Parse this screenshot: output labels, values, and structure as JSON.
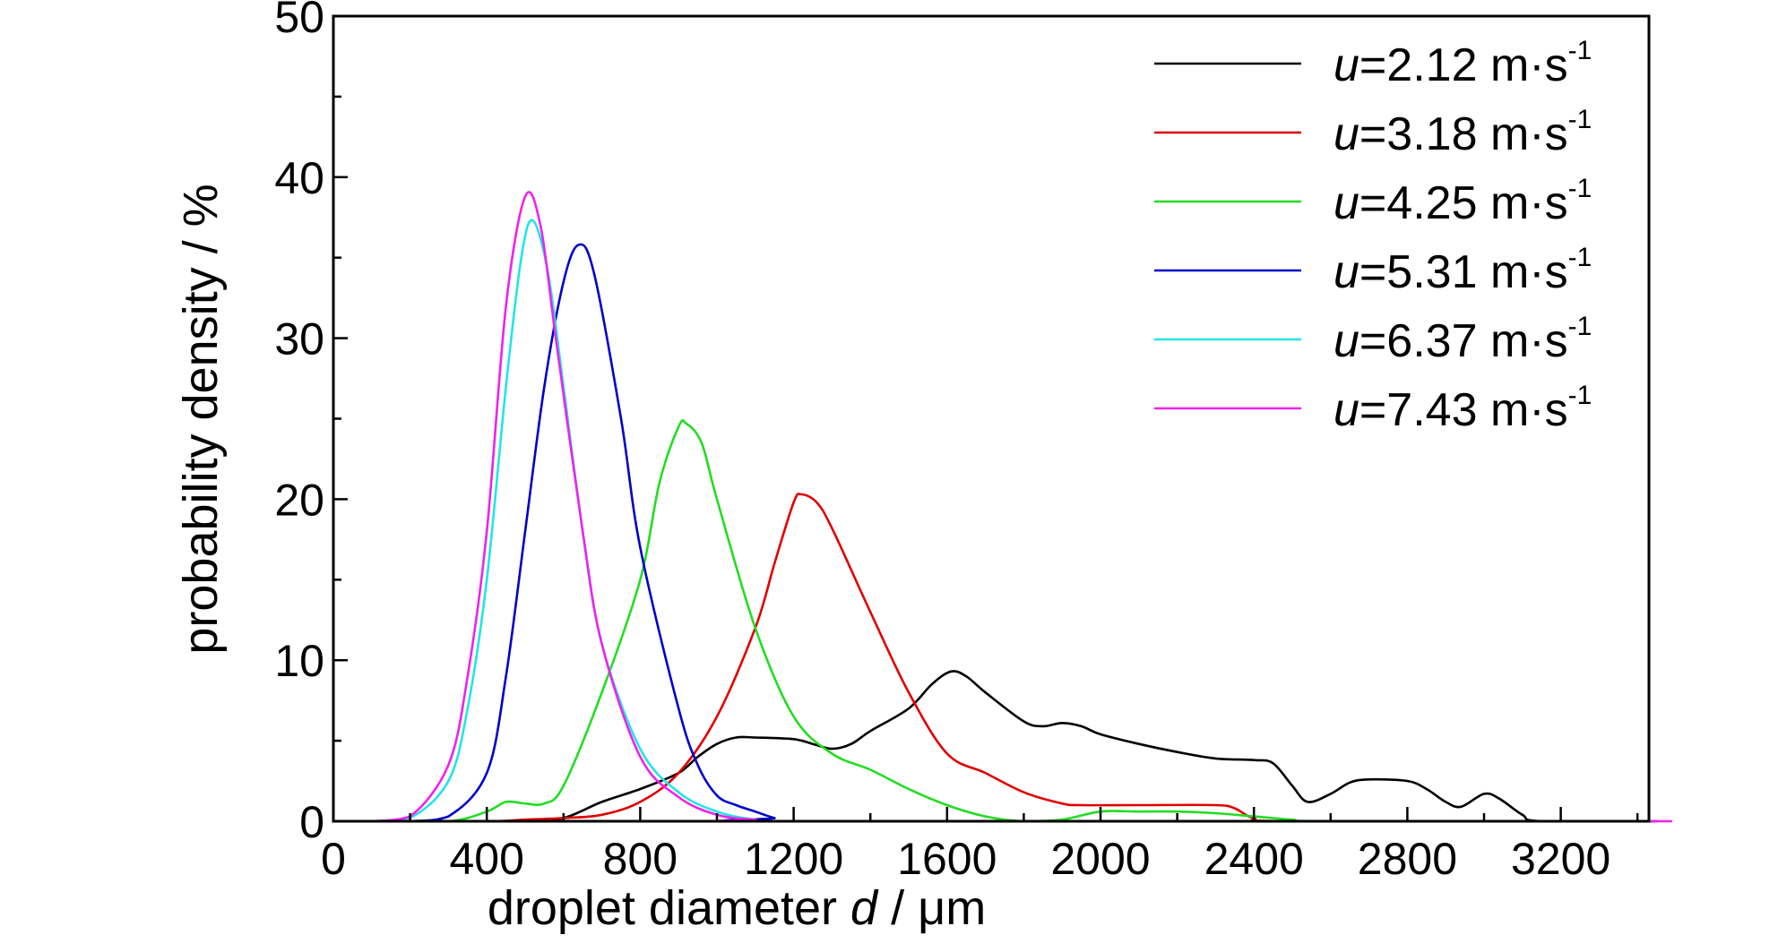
{
  "chart_data": {
    "type": "line",
    "xlabel": {
      "prefix": "droplet diameter ",
      "var": "d",
      "suffix": " / μm"
    },
    "ylabel": "probability density / %",
    "xlim": [
      0,
      3450
    ],
    "ylim": [
      0,
      50
    ],
    "xticks": [
      "0",
      "400",
      "800",
      "1200",
      "1600",
      "2000",
      "2400",
      "2800",
      "3200"
    ],
    "yticks": [
      "0",
      "10",
      "20",
      "30",
      "40",
      "50"
    ],
    "grid": false,
    "legend_position": "top-right",
    "series": [
      {
        "var": "u",
        "value": "=2.12 m·s",
        "exp": "-1",
        "color": "#000000",
        "points": [
          [
            100,
            0
          ],
          [
            400,
            0
          ],
          [
            500,
            0
          ],
          [
            600,
            0.2
          ],
          [
            700,
            1.2
          ],
          [
            800,
            2
          ],
          [
            900,
            3
          ],
          [
            950,
            4
          ],
          [
            1000,
            4.8
          ],
          [
            1050,
            5.2
          ],
          [
            1100,
            5.2
          ],
          [
            1200,
            5.1
          ],
          [
            1250,
            4.8
          ],
          [
            1300,
            4.5
          ],
          [
            1350,
            4.8
          ],
          [
            1400,
            5.6
          ],
          [
            1500,
            7
          ],
          [
            1560,
            8.5
          ],
          [
            1610,
            9.3
          ],
          [
            1650,
            9
          ],
          [
            1700,
            8
          ],
          [
            1800,
            6.2
          ],
          [
            1850,
            5.9
          ],
          [
            1900,
            6.1
          ],
          [
            1950,
            5.9
          ],
          [
            2000,
            5.4
          ],
          [
            2100,
            4.8
          ],
          [
            2200,
            4.3
          ],
          [
            2300,
            3.9
          ],
          [
            2400,
            3.8
          ],
          [
            2450,
            3.6
          ],
          [
            2500,
            2.2
          ],
          [
            2540,
            1.2
          ],
          [
            2600,
            1.7
          ],
          [
            2650,
            2.4
          ],
          [
            2700,
            2.6
          ],
          [
            2800,
            2.5
          ],
          [
            2850,
            2
          ],
          [
            2900,
            1.2
          ],
          [
            2940,
            0.9
          ],
          [
            3000,
            1.7
          ],
          [
            3040,
            1.4
          ],
          [
            3100,
            0.4
          ],
          [
            3150,
            0
          ],
          [
            3450,
            0
          ]
        ]
      },
      {
        "var": "u",
        "value": "=3.18 m·s",
        "exp": "-1",
        "color": "#e00000",
        "points": [
          [
            100,
            0
          ],
          [
            400,
            0
          ],
          [
            500,
            0.1
          ],
          [
            600,
            0.2
          ],
          [
            700,
            0.4
          ],
          [
            800,
            1.2
          ],
          [
            900,
            3
          ],
          [
            1000,
            6.5
          ],
          [
            1100,
            12
          ],
          [
            1150,
            16
          ],
          [
            1200,
            19.8
          ],
          [
            1220,
            20.3
          ],
          [
            1260,
            19.8
          ],
          [
            1300,
            18.2
          ],
          [
            1400,
            13
          ],
          [
            1500,
            8
          ],
          [
            1600,
            4.2
          ],
          [
            1700,
            3
          ],
          [
            1800,
            1.8
          ],
          [
            1900,
            1.1
          ],
          [
            1950,
            1
          ],
          [
            2100,
            1
          ],
          [
            2300,
            1
          ],
          [
            2350,
            0.8
          ],
          [
            2400,
            0.2
          ],
          [
            2500,
            0
          ],
          [
            3450,
            0
          ]
        ]
      },
      {
        "var": "u",
        "value": "=4.25 m·s",
        "exp": "-1",
        "color": "#22dd22",
        "points": [
          [
            100,
            0
          ],
          [
            300,
            0
          ],
          [
            400,
            0.6
          ],
          [
            450,
            1.2
          ],
          [
            500,
            1.1
          ],
          [
            550,
            1.1
          ],
          [
            600,
            2.2
          ],
          [
            700,
            8
          ],
          [
            800,
            15
          ],
          [
            850,
            21
          ],
          [
            900,
            24.5
          ],
          [
            920,
            24.7
          ],
          [
            960,
            23.5
          ],
          [
            1000,
            20
          ],
          [
            1100,
            12
          ],
          [
            1200,
            6.5
          ],
          [
            1300,
            4.2
          ],
          [
            1400,
            3.2
          ],
          [
            1500,
            2
          ],
          [
            1600,
            1
          ],
          [
            1700,
            0.3
          ],
          [
            1800,
            0
          ],
          [
            1900,
            0.1
          ],
          [
            2000,
            0.6
          ],
          [
            2100,
            0.6
          ],
          [
            2200,
            0.6
          ],
          [
            2300,
            0.5
          ],
          [
            2400,
            0.3
          ],
          [
            2500,
            0.1
          ],
          [
            2600,
            0
          ],
          [
            3450,
            0
          ]
        ]
      },
      {
        "var": "u",
        "value": "=5.31 m·s",
        "exp": "-1",
        "color": "#0000cc",
        "points": [
          [
            100,
            0
          ],
          [
            200,
            0
          ],
          [
            300,
            0.3
          ],
          [
            400,
            3
          ],
          [
            450,
            9
          ],
          [
            500,
            18
          ],
          [
            550,
            27
          ],
          [
            600,
            33.5
          ],
          [
            640,
            35.8
          ],
          [
            680,
            34
          ],
          [
            750,
            25
          ],
          [
            800,
            17
          ],
          [
            900,
            7
          ],
          [
            950,
            3.5
          ],
          [
            1000,
            1.6
          ],
          [
            1050,
            1
          ],
          [
            1100,
            0.6
          ],
          [
            1150,
            0.2
          ],
          [
            1200,
            0
          ],
          [
            3450,
            0
          ]
        ]
      },
      {
        "var": "u",
        "value": "=6.37 m·s",
        "exp": "-1",
        "color": "#22e5e5",
        "points": [
          [
            100,
            0
          ],
          [
            200,
            0.2
          ],
          [
            300,
            2.5
          ],
          [
            350,
            7
          ],
          [
            400,
            15
          ],
          [
            450,
            27
          ],
          [
            490,
            35
          ],
          [
            520,
            37.3
          ],
          [
            560,
            34
          ],
          [
            600,
            27
          ],
          [
            650,
            18
          ],
          [
            700,
            11
          ],
          [
            800,
            4.5
          ],
          [
            900,
            1.8
          ],
          [
            1000,
            0.6
          ],
          [
            1100,
            0.1
          ],
          [
            1200,
            0
          ],
          [
            3450,
            0
          ]
        ]
      },
      {
        "var": "u",
        "value": "=7.43 m·s",
        "exp": "-1",
        "color": "#ee22ee",
        "points": [
          [
            100,
            0
          ],
          [
            200,
            0.3
          ],
          [
            300,
            3.5
          ],
          [
            350,
            9
          ],
          [
            400,
            18
          ],
          [
            450,
            32
          ],
          [
            500,
            38.8
          ],
          [
            540,
            37
          ],
          [
            580,
            30
          ],
          [
            650,
            18
          ],
          [
            700,
            11
          ],
          [
            800,
            4
          ],
          [
            900,
            1.5
          ],
          [
            1000,
            0.4
          ],
          [
            1100,
            0.1
          ],
          [
            1200,
            0
          ],
          [
            3450,
            0
          ]
        ]
      }
    ]
  }
}
